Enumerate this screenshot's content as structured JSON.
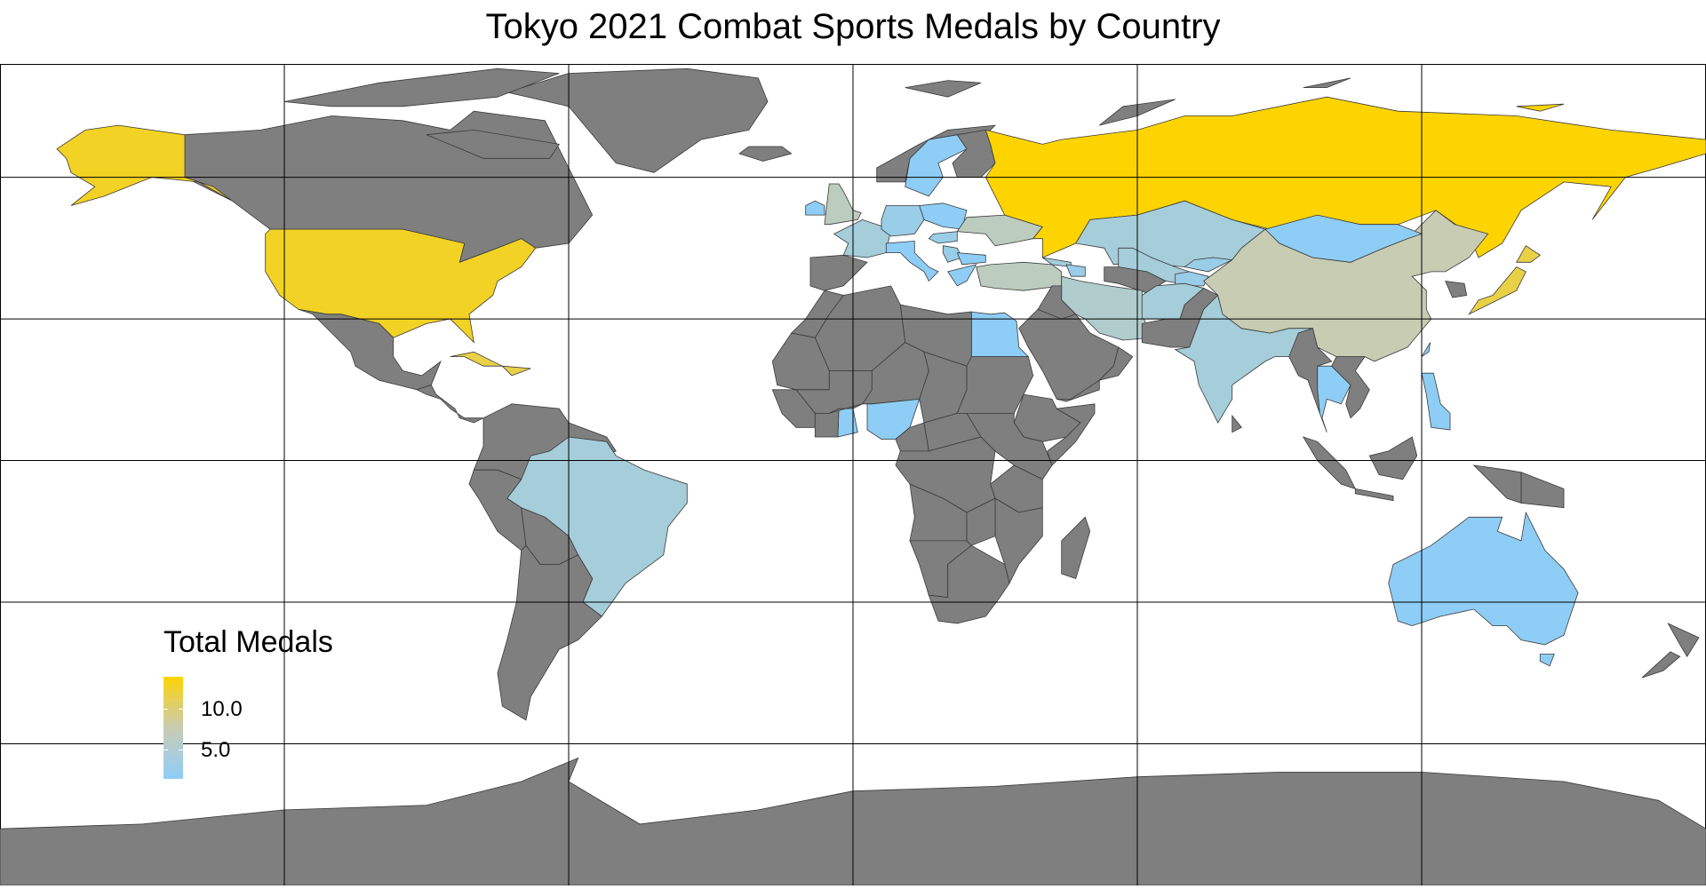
{
  "title": "Tokyo 2021 Combat Sports Medals by Country",
  "colors": {
    "land_no_data": "#7f7f7f",
    "ocean": "#ffffff",
    "grid": "#000000",
    "scale_low": "#8ecdf5",
    "scale_mid": "#c8ccb2",
    "scale_high": "#fdd400"
  },
  "legend": {
    "title": "Total Medals",
    "min": 3,
    "max": 13,
    "labels": [
      "10.0",
      "5.0"
    ],
    "label_values": [
      10,
      5
    ]
  },
  "chart_data": {
    "type": "choropleth",
    "projection": "equirectangular",
    "title": "Tokyo 2021 Combat Sports Medals by Country",
    "colorbar_title": "Total Medals",
    "colorbar_ticks": [
      5.0,
      10.0
    ],
    "colorbar_range": [
      3,
      13
    ],
    "graticule_longitudes": [
      -120,
      -60,
      0,
      60,
      120
    ],
    "graticule_latitudes": [
      -60,
      -30,
      0,
      30,
      60
    ],
    "countries_with_medals": [
      {
        "country": "Russia",
        "medals": 13
      },
      {
        "country": "United States",
        "medals": 12
      },
      {
        "country": "Japan",
        "medals": 11
      },
      {
        "country": "Cuba",
        "medals": 11
      },
      {
        "country": "China",
        "medals": 8
      },
      {
        "country": "Turkey",
        "medals": 7
      },
      {
        "country": "Ukraine",
        "medals": 7
      },
      {
        "country": "United Kingdom",
        "medals": 7
      },
      {
        "country": "Iran",
        "medals": 6
      },
      {
        "country": "Kazakhstan",
        "medals": 5
      },
      {
        "country": "Uzbekistan",
        "medals": 5
      },
      {
        "country": "Brazil",
        "medals": 5
      },
      {
        "country": "India",
        "medals": 5
      },
      {
        "country": "Georgia",
        "medals": 5
      },
      {
        "country": "Azerbaijan",
        "medals": 4
      },
      {
        "country": "France",
        "medals": 5
      },
      {
        "country": "Germany",
        "medals": 4
      },
      {
        "country": "Hungary",
        "medals": 4
      },
      {
        "country": "Serbia",
        "medals": 4
      },
      {
        "country": "Mongolia",
        "medals": 3
      },
      {
        "country": "Italy",
        "medals": 3
      },
      {
        "country": "Egypt",
        "medals": 3
      },
      {
        "country": "Nigeria",
        "medals": 3
      },
      {
        "country": "Ghana",
        "medals": 3
      },
      {
        "country": "Thailand",
        "medals": 3
      },
      {
        "country": "Philippines",
        "medals": 3
      },
      {
        "country": "Australia",
        "medals": 3
      },
      {
        "country": "Ireland",
        "medals": 3
      },
      {
        "country": "Poland",
        "medals": 3
      },
      {
        "country": "Sweden",
        "medals": 3
      },
      {
        "country": "Greece",
        "medals": 3
      },
      {
        "country": "Bulgaria",
        "medals": 3
      },
      {
        "country": "Kyrgyzstan",
        "medals": 4
      },
      {
        "country": "Tajikistan",
        "medals": 4
      },
      {
        "country": "Afghanistan",
        "medals": 5
      },
      {
        "country": "Taiwan",
        "medals": 3
      }
    ]
  }
}
